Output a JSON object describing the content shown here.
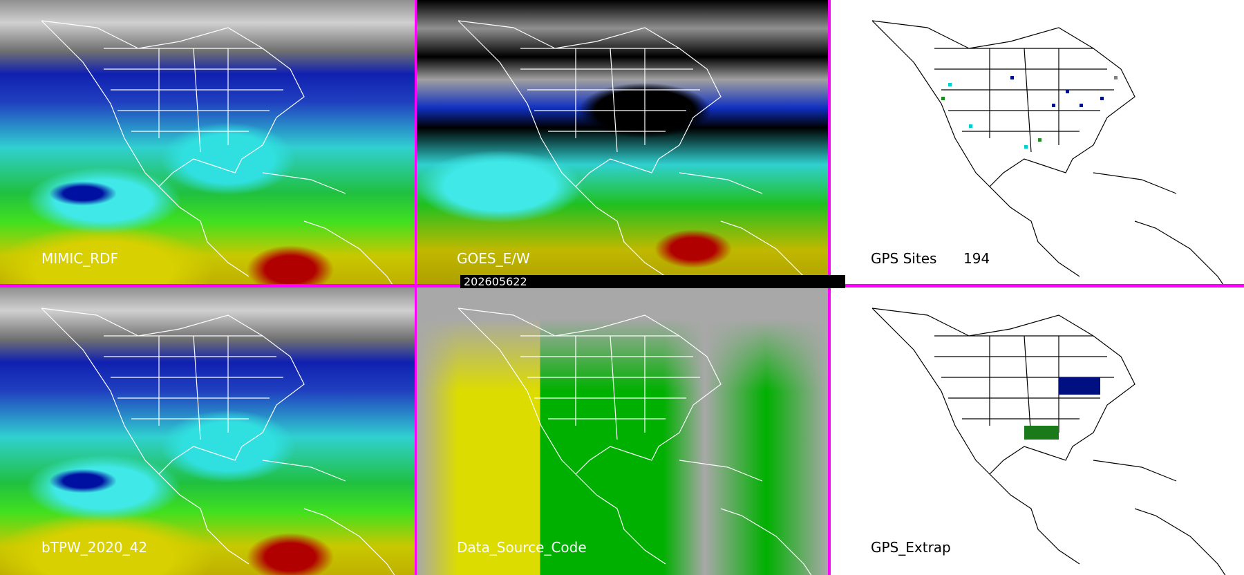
{
  "panels": [
    {
      "label": "MIMIC_RDF"
    },
    {
      "label": "GOES_E/W"
    },
    {
      "label": "GPS Sites",
      "count": "194"
    },
    {
      "label": "bTPW_2020_42"
    },
    {
      "label": "Data_Source_Code"
    },
    {
      "label": "GPS_Extrap"
    }
  ],
  "timestamp": "202605622",
  "colors": {
    "border": "#ff00ff",
    "background": "#ffffff"
  }
}
